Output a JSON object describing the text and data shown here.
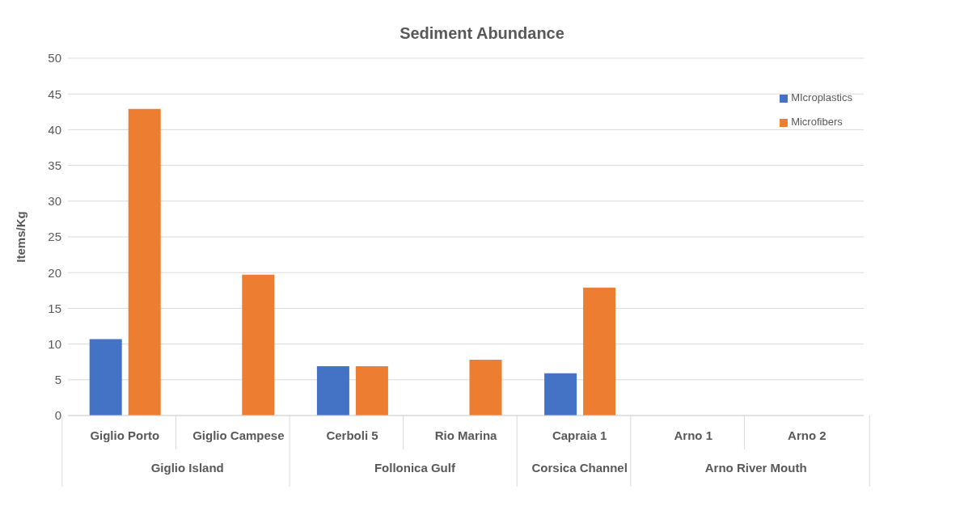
{
  "chart_data": {
    "type": "bar",
    "title": "Sediment Abundance",
    "ylabel": "Items/Kg",
    "categories": [
      "Giglio Porto",
      "Giglio Campese",
      "Cerboli 5",
      "Rio Marina",
      "Capraia 1",
      "Arno 1",
      "Arno 2"
    ],
    "series": [
      {
        "name": "MIcroplastics",
        "color": "#4472c4",
        "values": [
          10.7,
          0,
          6.9,
          0,
          5.9,
          0,
          0
        ]
      },
      {
        "name": "Microfibers",
        "color": "#ed7d31",
        "values": [
          42.9,
          19.7,
          6.9,
          7.8,
          17.9,
          0,
          0
        ]
      }
    ],
    "annotations": [
      "Giglio Island",
      "Follonica Gulf",
      "Corsica Channel",
      "Arno River Mouth"
    ],
    "ylim": [
      0,
      50
    ],
    "yticks": [
      0,
      5,
      10,
      15,
      20,
      25,
      30,
      35,
      40,
      45,
      50
    ],
    "grid": "y",
    "legend": "top right"
  }
}
